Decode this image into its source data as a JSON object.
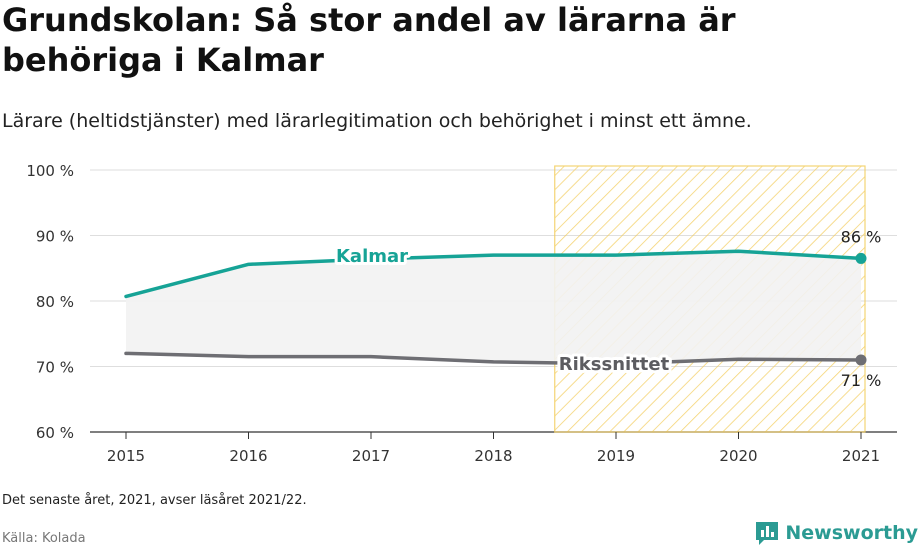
{
  "title": "Grundskolan: Så stor andel av lärarna är behöriga i Kalmar",
  "subtitle": "Lärare (heltidstjänster) med lärarlegitimation och behörighet i minst ett ämne.",
  "note": "Det senaste året, 2021, avser läsåret 2021/22.",
  "source": "Källa: Kolada",
  "brand": "Newsworthy",
  "colors": {
    "kalmar": "#16a396",
    "riks": "#6e6e73",
    "highlight": "#f3cd5c",
    "fill": "#f2f2f2"
  },
  "chart_data": {
    "type": "line",
    "x": [
      2015,
      2016,
      2017,
      2018,
      2019,
      2020,
      2021
    ],
    "ylim": [
      60,
      100
    ],
    "yticks": [
      60,
      70,
      80,
      90,
      100
    ],
    "ytick_labels": [
      "60 %",
      "70 %",
      "80 %",
      "90 %",
      "100 %"
    ],
    "series": [
      {
        "name": "Kalmar",
        "values": [
          80.7,
          85.6,
          86.4,
          87.0,
          87.0,
          87.6,
          86.5
        ],
        "end_label": "86 %"
      },
      {
        "name": "Rikssnittet",
        "values": [
          72.0,
          71.5,
          71.5,
          70.7,
          70.4,
          71.1,
          71.0
        ],
        "end_label": "71 %"
      }
    ],
    "highlight_range": [
      2018.5,
      2021
    ],
    "grid": true
  }
}
